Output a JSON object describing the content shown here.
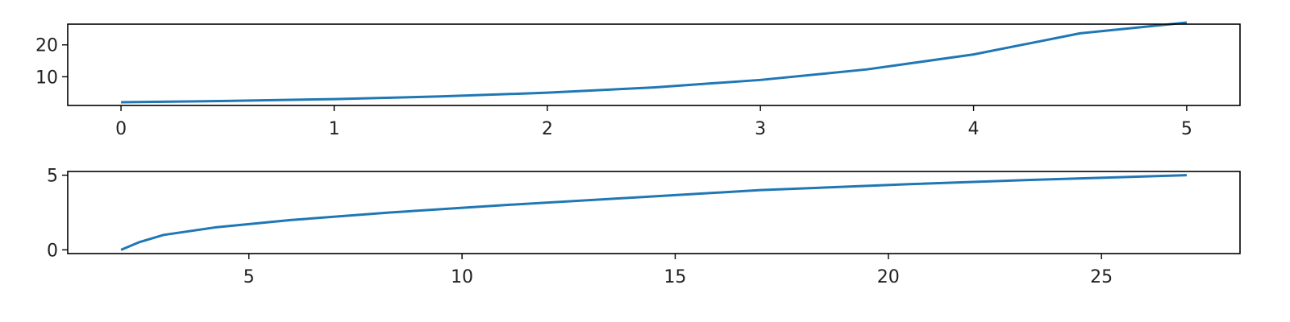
{
  "chart_data": [
    {
      "type": "line",
      "title": "",
      "xlabel": "",
      "ylabel": "",
      "xlim": [
        -0.25,
        5.25
      ],
      "ylim": [
        1.0,
        26.5
      ],
      "xticks": [
        0,
        1,
        2,
        3,
        4,
        5
      ],
      "yticks": [
        10,
        20
      ],
      "grid": false,
      "series": [
        {
          "color": "#1f77b4",
          "x": [
            0,
            0.5,
            1,
            1.5,
            2,
            2.5,
            3,
            3.5,
            4,
            4.5,
            5
          ],
          "y": [
            2.0,
            2.4142,
            3.0,
            3.8284,
            5.0,
            6.6569,
            9.0,
            12.3137,
            17.0,
            23.6274,
            27.0
          ]
        }
      ]
    },
    {
      "type": "line",
      "title": "",
      "xlabel": "",
      "ylabel": "",
      "xlim": [
        0.75,
        28.25
      ],
      "ylim": [
        -0.25,
        5.25
      ],
      "xticks": [
        5,
        10,
        15,
        20,
        25
      ],
      "yticks": [
        0,
        5
      ],
      "grid": false,
      "series": [
        {
          "color": "#1f77b4",
          "x": [
            2.0,
            2.4142,
            3.0,
            4.2,
            6.0,
            8.3,
            11.0,
            14.0,
            17.0,
            20.5,
            23.5,
            27.0
          ],
          "y": [
            0,
            0.5,
            1.0,
            1.5,
            2.0,
            2.5,
            3.0,
            3.5,
            4.0,
            4.4,
            4.7,
            5.0
          ]
        }
      ]
    }
  ]
}
